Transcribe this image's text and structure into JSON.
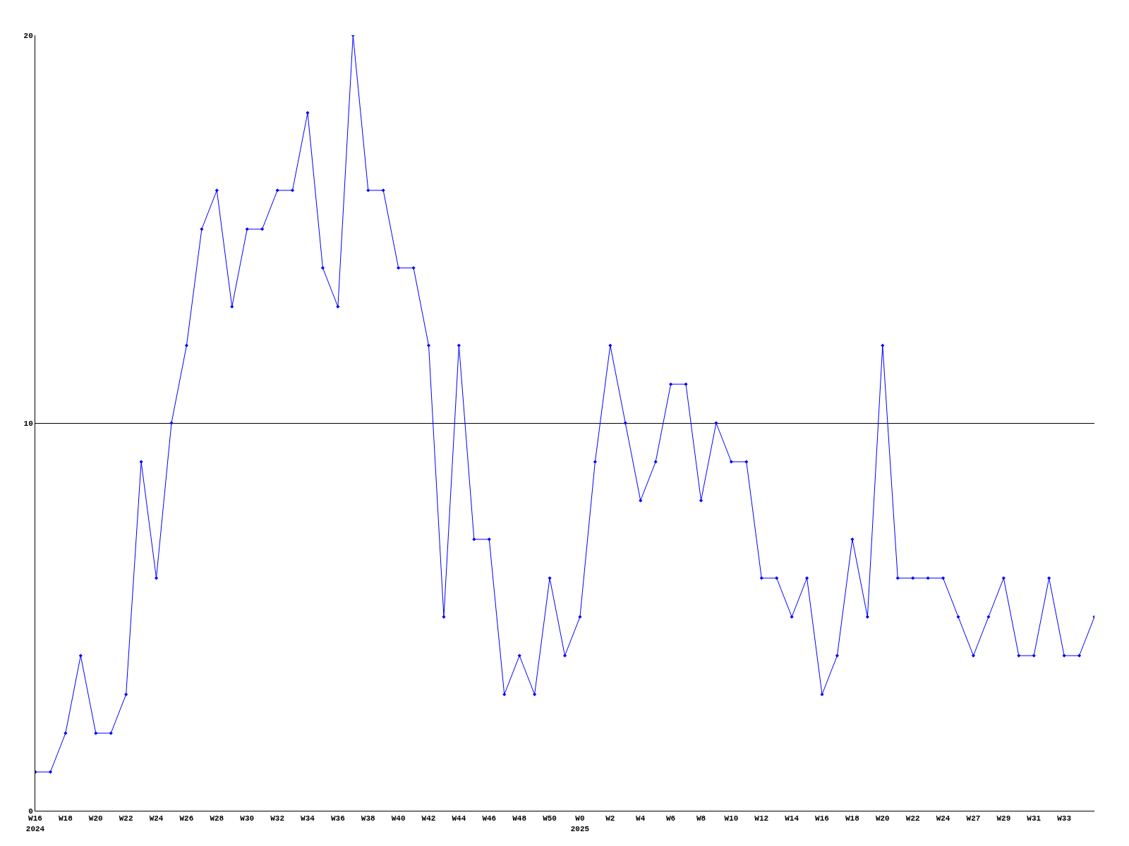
{
  "chart_data": {
    "type": "line",
    "categories": [
      "W16\n2024",
      null,
      "W18",
      null,
      "W20",
      null,
      "W22",
      null,
      "W24",
      null,
      "W26",
      null,
      "W28",
      null,
      "W30",
      null,
      "W32",
      null,
      "W34",
      null,
      "W36",
      null,
      "W38",
      null,
      "W40",
      null,
      "W42",
      null,
      "W44",
      null,
      "W46",
      null,
      "W48",
      null,
      "W50",
      null,
      "W0\n2025",
      null,
      "W2",
      null,
      "W4",
      null,
      "W6",
      null,
      "W8",
      null,
      "W10",
      null,
      "W12",
      null,
      "W14",
      null,
      "W16",
      null,
      "W18",
      null,
      "W20",
      null,
      "W22",
      null,
      "W24",
      null,
      "W27",
      null,
      "W29",
      null,
      "W31",
      null,
      "W33",
      null,
      null
    ],
    "series": [
      {
        "color": "#0000ff",
        "values": [
          1,
          1,
          2,
          4,
          2,
          2,
          3,
          9,
          6,
          10,
          12,
          15,
          16,
          13,
          15,
          15,
          16,
          16,
          18,
          14,
          13,
          20,
          16,
          16,
          14,
          14,
          12,
          5,
          12,
          7,
          7,
          3,
          4,
          3,
          6,
          4,
          5,
          9,
          12,
          10,
          8,
          9,
          11,
          11,
          8,
          10,
          9,
          9,
          6,
          6,
          5,
          6,
          3,
          4,
          7,
          5,
          12,
          6,
          6,
          6,
          6,
          5,
          4,
          5,
          6,
          4,
          4,
          6,
          4,
          4,
          5
        ]
      }
    ],
    "ylim": [
      0,
      20
    ],
    "yticks": [
      0,
      10,
      20
    ],
    "grid": "y",
    "marker": "diamond",
    "line_style": "solid",
    "legend": false
  }
}
